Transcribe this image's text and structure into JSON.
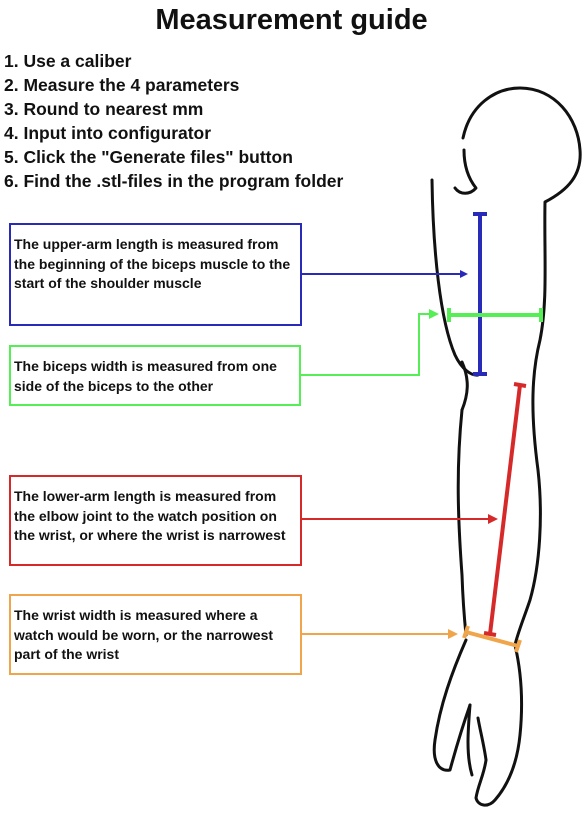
{
  "title": "Measurement guide",
  "steps": [
    "1. Use a caliber",
    "2. Measure the 4 parameters",
    "3. Round to nearest mm",
    "4. Input into configurator",
    "5. Click the \"Generate files\" button",
    "6. Find the .stl-files in the program folder"
  ],
  "callouts": {
    "upper_arm": "The upper-arm length is measured from the beginning of the biceps muscle to the start of the shoulder muscle",
    "biceps": "The biceps width is measured from one side of the biceps to the other",
    "lower_arm": "The lower-arm length is measured from the elbow joint to the watch position on the wrist, or where the wrist is narrowest",
    "wrist": "The wrist width is measured where a watch would be worn, or the narrowest part of the wrist"
  },
  "colors": {
    "upper_arm": "#2a2ab8",
    "biceps": "#55ee55",
    "lower_arm": "#d62a2a",
    "wrist": "#f0a54a",
    "outline": "#111111"
  }
}
